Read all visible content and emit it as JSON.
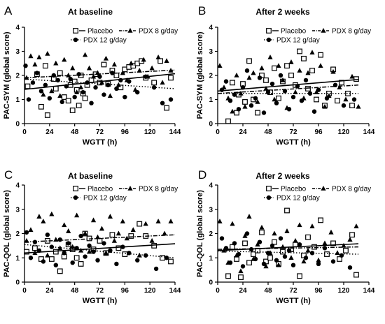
{
  "chart_data": [
    {
      "type": "scatter",
      "panel_letter": "A",
      "title": "At baseline",
      "xlabel": "WGTT (h)",
      "ylabel": "PAC-SYM (global score)",
      "xlim": [
        0,
        144
      ],
      "ylim": [
        0,
        4
      ],
      "xticks": [
        0,
        24,
        48,
        72,
        96,
        120,
        144
      ],
      "yticks": [
        0,
        1,
        2,
        3,
        4
      ],
      "legend": {
        "position": "top",
        "entries": [
          "Placebo",
          "PDX 8 g/day",
          "PDX 12 g/day"
        ]
      },
      "series": [
        {
          "name": "Placebo",
          "marker": "square-open",
          "line": "solid",
          "trend": [
            [
              0,
              1.42
            ],
            [
              144,
              2.07
            ]
          ],
          "x": [
            3,
            12,
            16,
            20,
            22,
            28,
            30,
            34,
            38,
            42,
            44,
            46,
            48,
            50,
            52,
            54,
            56,
            58,
            60,
            64,
            68,
            72,
            76,
            80,
            84,
            88,
            92,
            96,
            100,
            104,
            108,
            112,
            116,
            124,
            130,
            136,
            140
          ],
          "y": [
            1.55,
            2.05,
            0.7,
            2.4,
            0.35,
            1.85,
            1.45,
            2.1,
            1.1,
            0.95,
            1.6,
            0.55,
            1.75,
            1.4,
            0.75,
            2.0,
            1.25,
            1.05,
            1.6,
            1.8,
            2.05,
            1.7,
            2.45,
            1.65,
            2.2,
            2.0,
            1.5,
            2.25,
            2.35,
            2.4,
            2.5,
            2.6,
            1.9,
            1.7,
            2.6,
            0.65,
            1.9
          ]
        },
        {
          "name": "PDX 8 g/day",
          "marker": "triangle",
          "line": "dash-dot",
          "trend": [
            [
              0,
              1.9
            ],
            [
              144,
              2.22
            ]
          ],
          "x": [
            2,
            6,
            10,
            14,
            18,
            22,
            26,
            30,
            34,
            38,
            42,
            46,
            50,
            54,
            58,
            62,
            66,
            70,
            74,
            78,
            82,
            86,
            90,
            94,
            98,
            102,
            106,
            110,
            114,
            118,
            122,
            128,
            132,
            136,
            140
          ],
          "y": [
            1.9,
            2.8,
            2.45,
            2.75,
            1.2,
            2.9,
            1.35,
            2.5,
            1.15,
            2.65,
            2.0,
            2.3,
            1.3,
            1.5,
            2.85,
            2.3,
            1.95,
            2.1,
            1.7,
            2.7,
            1.15,
            2.45,
            1.6,
            2.1,
            1.8,
            2.5,
            1.4,
            2.2,
            2.65,
            1.95,
            2.3,
            2.75,
            1.7,
            2.6,
            2.2
          ]
        },
        {
          "name": "PDX 12 g/day",
          "marker": "circle",
          "line": "dotted",
          "trend": [
            [
              0,
              1.85
            ],
            [
              144,
              1.45
            ]
          ],
          "x": [
            1,
            4,
            8,
            12,
            16,
            20,
            24,
            28,
            32,
            36,
            40,
            44,
            48,
            52,
            56,
            60,
            64,
            68,
            72,
            76,
            80,
            84,
            88,
            92,
            96,
            100,
            108,
            116,
            124,
            132,
            140
          ],
          "y": [
            2.4,
            1.0,
            1.7,
            2.1,
            1.35,
            1.6,
            1.05,
            2.0,
            1.8,
            0.9,
            1.55,
            1.85,
            1.1,
            2.05,
            1.3,
            1.7,
            0.85,
            1.5,
            1.95,
            1.2,
            1.6,
            2.1,
            1.45,
            1.8,
            1.1,
            1.75,
            1.3,
            1.95,
            1.5,
            0.85,
            1.0
          ]
        }
      ]
    },
    {
      "type": "scatter",
      "panel_letter": "B",
      "title": "After 2 weeks",
      "xlabel": "WGTT (h)",
      "ylabel": "PAC-SYM (global score)",
      "xlim": [
        0,
        144
      ],
      "ylim": [
        0,
        4
      ],
      "xticks": [
        0,
        24,
        48,
        72,
        96,
        120,
        144
      ],
      "yticks": [
        0,
        1,
        2,
        3,
        4
      ],
      "legend": {
        "position": "top",
        "entries": [
          "Placebo",
          "PDX 8 g/day",
          "PDX 12 g/day"
        ]
      },
      "series": [
        {
          "name": "Placebo",
          "marker": "square-open",
          "line": "solid",
          "trend": [
            [
              0,
              1.35
            ],
            [
              134,
              1.83
            ]
          ],
          "x": [
            10,
            14,
            18,
            20,
            24,
            26,
            30,
            34,
            38,
            42,
            46,
            50,
            54,
            58,
            62,
            66,
            70,
            74,
            78,
            82,
            86,
            90,
            94,
            98,
            102,
            106,
            110,
            114,
            118,
            124,
            128,
            132
          ],
          "y": [
            0.1,
            1.7,
            0.45,
            1.2,
            1.65,
            0.9,
            2.6,
            1.0,
            0.45,
            2.0,
            1.8,
            1.3,
            2.3,
            1.05,
            1.75,
            2.4,
            2.0,
            1.6,
            3.0,
            2.7,
            1.45,
            2.2,
            1.0,
            2.85,
            0.75,
            1.25,
            2.25,
            0.95,
            1.7,
            1.25,
            0.75,
            1.85
          ]
        },
        {
          "name": "PDX 8 g/day",
          "marker": "triangle",
          "line": "dash-dot",
          "trend": [
            [
              0,
              1.25
            ],
            [
              134,
              1.6
            ]
          ],
          "x": [
            2,
            6,
            10,
            14,
            18,
            22,
            26,
            30,
            34,
            38,
            42,
            46,
            50,
            54,
            58,
            62,
            66,
            70,
            74,
            78,
            82,
            86,
            90,
            94,
            98,
            102,
            106,
            110,
            116,
            122,
            128,
            134
          ],
          "y": [
            2.4,
            1.5,
            1.05,
            0.5,
            2.0,
            1.25,
            0.7,
            1.9,
            2.1,
            0.9,
            2.3,
            1.45,
            2.75,
            1.0,
            2.4,
            1.8,
            0.65,
            2.55,
            1.3,
            2.2,
            1.05,
            2.1,
            2.95,
            1.3,
            2.4,
            0.7,
            1.15,
            2.15,
            1.5,
            1.0,
            1.95,
            0.7
          ]
        },
        {
          "name": "PDX 12 g/day",
          "marker": "circle",
          "line": "dotted",
          "trend": [
            [
              0,
              1.25
            ],
            [
              134,
              1.25
            ]
          ],
          "x": [
            4,
            8,
            12,
            16,
            20,
            24,
            28,
            32,
            36,
            40,
            44,
            48,
            52,
            56,
            60,
            64,
            68,
            72,
            76,
            80,
            84,
            88,
            92,
            96,
            104,
            112,
            120,
            130
          ],
          "y": [
            1.4,
            1.75,
            0.95,
            1.2,
            0.6,
            1.5,
            2.2,
            0.75,
            1.05,
            1.9,
            0.45,
            1.3,
            1.65,
            0.85,
            2.0,
            1.35,
            0.6,
            1.1,
            1.55,
            0.95,
            1.8,
            1.25,
            0.5,
            1.4,
            1.05,
            1.6,
            0.75,
            1.0
          ]
        }
      ]
    },
    {
      "type": "scatter",
      "panel_letter": "C",
      "title": "At baseline",
      "xlabel": "WGTT (h)",
      "ylabel": "PAC-QOL (global score)",
      "xlim": [
        0,
        144
      ],
      "ylim": [
        0,
        4
      ],
      "xticks": [
        0,
        24,
        48,
        72,
        96,
        120,
        144
      ],
      "yticks": [
        0,
        1,
        2,
        3,
        4
      ],
      "legend": {
        "position": "top",
        "entries": [
          "Placebo",
          "PDX 8 g/day",
          "PDX 12 g/day"
        ]
      },
      "series": [
        {
          "name": "Placebo",
          "marker": "square-open",
          "line": "solid",
          "trend": [
            [
              0,
              1.2
            ],
            [
              144,
              1.58
            ]
          ],
          "x": [
            2,
            10,
            16,
            22,
            26,
            30,
            34,
            38,
            42,
            46,
            50,
            54,
            58,
            62,
            66,
            72,
            78,
            84,
            90,
            96,
            102,
            110,
            116,
            124,
            132,
            140
          ],
          "y": [
            1.25,
            1.4,
            0.95,
            1.7,
            0.95,
            1.25,
            0.45,
            1.05,
            1.55,
            1.35,
            1.0,
            0.75,
            2.0,
            1.8,
            1.35,
            1.7,
            1.2,
            1.95,
            1.4,
            1.15,
            1.9,
            2.4,
            1.9,
            1.5,
            1.0,
            0.85
          ]
        },
        {
          "name": "PDX 8 g/day",
          "marker": "triangle",
          "line": "dash-dot",
          "trend": [
            [
              0,
              1.65
            ],
            [
              144,
              1.95
            ]
          ],
          "x": [
            2,
            6,
            10,
            14,
            18,
            22,
            26,
            30,
            34,
            38,
            42,
            46,
            50,
            54,
            58,
            62,
            66,
            70,
            74,
            78,
            82,
            86,
            90,
            94,
            98,
            104,
            110,
            116,
            122,
            128,
            134,
            140
          ],
          "y": [
            1.7,
            2.15,
            1.2,
            2.7,
            2.5,
            1.1,
            2.8,
            1.75,
            1.4,
            2.35,
            2.1,
            1.45,
            2.75,
            1.3,
            2.0,
            1.25,
            2.55,
            1.85,
            2.2,
            1.2,
            2.7,
            1.7,
            2.0,
            2.5,
            1.8,
            2.15,
            1.1,
            2.4,
            1.7,
            2.5,
            2.0,
            2.5
          ]
        },
        {
          "name": "PDX 12 g/day",
          "marker": "circle",
          "line": "dotted",
          "trend": [
            [
              0,
              1.55
            ],
            [
              144,
              1.0
            ]
          ],
          "x": [
            2,
            6,
            10,
            14,
            18,
            22,
            26,
            30,
            34,
            38,
            42,
            46,
            50,
            54,
            58,
            62,
            66,
            70,
            76,
            82,
            88,
            94,
            100,
            108,
            116,
            126,
            136
          ],
          "y": [
            2.05,
            1.0,
            1.65,
            1.3,
            0.85,
            1.95,
            1.45,
            0.7,
            1.75,
            1.2,
            1.6,
            0.8,
            1.4,
            1.9,
            1.05,
            1.5,
            1.25,
            0.9,
            1.6,
            1.3,
            0.75,
            1.45,
            1.2,
            0.9,
            1.1,
            0.55,
            1.0
          ]
        }
      ]
    },
    {
      "type": "scatter",
      "panel_letter": "D",
      "title": "After 2 weeks",
      "xlabel": "WGTT (h)",
      "ylabel": "PAC-QOL (global score)",
      "xlim": [
        0,
        144
      ],
      "ylim": [
        0,
        4
      ],
      "xticks": [
        0,
        24,
        48,
        72,
        96,
        120,
        144
      ],
      "yticks": [
        0,
        1,
        2,
        3,
        4
      ],
      "legend": {
        "position": "top",
        "entries": [
          "Placebo",
          "PDX 8 g/day",
          "PDX 12 g/day"
        ]
      },
      "series": [
        {
          "name": "Placebo",
          "marker": "square-open",
          "line": "solid",
          "trend": [
            [
              0,
              1.3
            ],
            [
              134,
              1.58
            ]
          ],
          "x": [
            10,
            14,
            18,
            22,
            26,
            30,
            34,
            38,
            42,
            46,
            50,
            54,
            58,
            62,
            66,
            70,
            74,
            78,
            82,
            86,
            92,
            98,
            104,
            110,
            116,
            122,
            128,
            132
          ],
          "y": [
            0.25,
            1.45,
            0.95,
            0.2,
            1.6,
            0.8,
            1.15,
            1.3,
            2.05,
            0.85,
            1.0,
            1.65,
            0.75,
            1.25,
            2.95,
            1.35,
            1.55,
            0.25,
            1.1,
            1.85,
            1.45,
            2.55,
            1.15,
            1.6,
            0.95,
            1.3,
            1.95,
            0.3
          ]
        },
        {
          "name": "PDX 8 g/day",
          "marker": "triangle",
          "line": "dash-dot",
          "trend": [
            [
              0,
              1.35
            ],
            [
              134,
              1.45
            ]
          ],
          "x": [
            2,
            6,
            10,
            14,
            18,
            22,
            26,
            30,
            34,
            38,
            42,
            46,
            50,
            54,
            58,
            62,
            66,
            70,
            74,
            78,
            82,
            86,
            90,
            96,
            102,
            108,
            114,
            120,
            126,
            132
          ],
          "y": [
            2.5,
            1.3,
            0.8,
            2.4,
            1.1,
            0.45,
            1.9,
            2.7,
            0.95,
            1.55,
            2.25,
            0.65,
            1.2,
            2.0,
            0.7,
            1.45,
            2.1,
            1.0,
            1.7,
            2.35,
            0.85,
            1.3,
            2.3,
            0.9,
            1.6,
            2.05,
            1.2,
            1.5,
            1.75,
            2.3
          ]
        },
        {
          "name": "PDX 12 g/day",
          "marker": "circle",
          "line": "dotted",
          "trend": [
            [
              0,
              1.28
            ],
            [
              134,
              1.15
            ]
          ],
          "x": [
            4,
            8,
            12,
            16,
            20,
            24,
            28,
            32,
            36,
            40,
            44,
            48,
            52,
            56,
            60,
            64,
            68,
            72,
            78,
            84,
            90,
            96,
            102,
            110,
            118,
            126
          ],
          "y": [
            1.8,
            1.4,
            0.8,
            1.6,
            1.15,
            0.65,
            2.0,
            1.35,
            0.95,
            1.65,
            0.75,
            1.2,
            1.5,
            0.9,
            1.8,
            1.05,
            1.3,
            0.7,
            1.55,
            1.0,
            1.2,
            0.75,
            1.4,
            0.85,
            1.1,
            0.6
          ]
        }
      ]
    }
  ]
}
